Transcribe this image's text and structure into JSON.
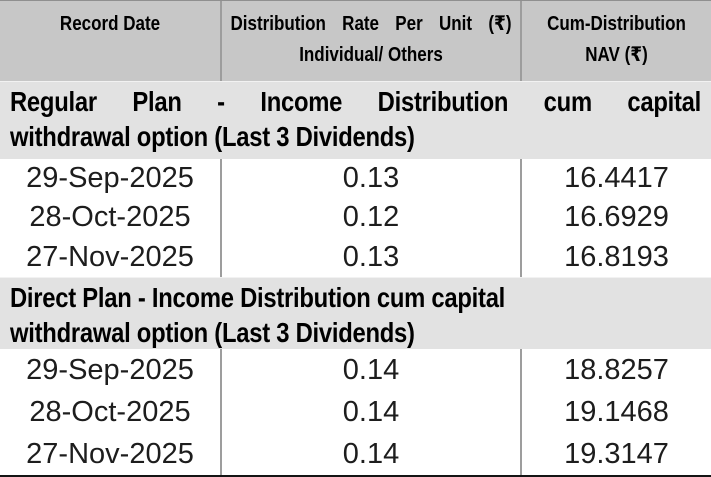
{
  "colors": {
    "header_bg": "#c7c7c7",
    "section_bg": "#e2e2e2",
    "divider": "#9d9d9d",
    "bottom_border": "#141414",
    "text": "#000000"
  },
  "table": {
    "header": {
      "record_date": "Record Date",
      "rate_line1": "Distribution Rate Per Unit (₹)",
      "rate_line2": "Individual/ Others",
      "nav_line1": "Cum-Distribution",
      "nav_line2": "NAV (₹)"
    },
    "sections": [
      {
        "title_line1": "Regular Plan - Income Distribution cum capital",
        "title_line2": "withdrawal option (Last 3 Dividends)",
        "rows": [
          {
            "record_date": "29-Sep-2025",
            "rate": "0.13",
            "nav": "16.4417"
          },
          {
            "record_date": "28-Oct-2025",
            "rate": "0.12",
            "nav": "16.6929"
          },
          {
            "record_date": "27-Nov-2025",
            "rate": "0.13",
            "nav": "16.8193"
          }
        ]
      },
      {
        "title_line1": "Direct Plan - Income Distribution cum capital",
        "title_line2": "withdrawal option (Last 3 Dividends)",
        "rows": [
          {
            "record_date": "29-Sep-2025",
            "rate": "0.14",
            "nav": "18.8257"
          },
          {
            "record_date": "28-Oct-2025",
            "rate": "0.14",
            "nav": "19.1468"
          },
          {
            "record_date": "27-Nov-2025",
            "rate": "0.14",
            "nav": "19.3147"
          }
        ]
      }
    ]
  },
  "chart_data": {
    "type": "table",
    "columns": [
      "Record Date",
      "Distribution Rate Per Unit (₹) Individual/ Others",
      "Cum-Distribution NAV (₹)"
    ],
    "sections": [
      {
        "title": "Regular Plan - Income Distribution cum capital withdrawal option (Last 3 Dividends)",
        "rows": [
          [
            "29-Sep-2025",
            0.13,
            16.4417
          ],
          [
            "28-Oct-2025",
            0.12,
            16.6929
          ],
          [
            "27-Nov-2025",
            0.13,
            16.8193
          ]
        ]
      },
      {
        "title": "Direct Plan - Income Distribution cum capital withdrawal option (Last 3 Dividends)",
        "rows": [
          [
            "29-Sep-2025",
            0.14,
            18.8257
          ],
          [
            "28-Oct-2025",
            0.14,
            19.1468
          ],
          [
            "27-Nov-2025",
            0.14,
            19.3147
          ]
        ]
      }
    ]
  }
}
